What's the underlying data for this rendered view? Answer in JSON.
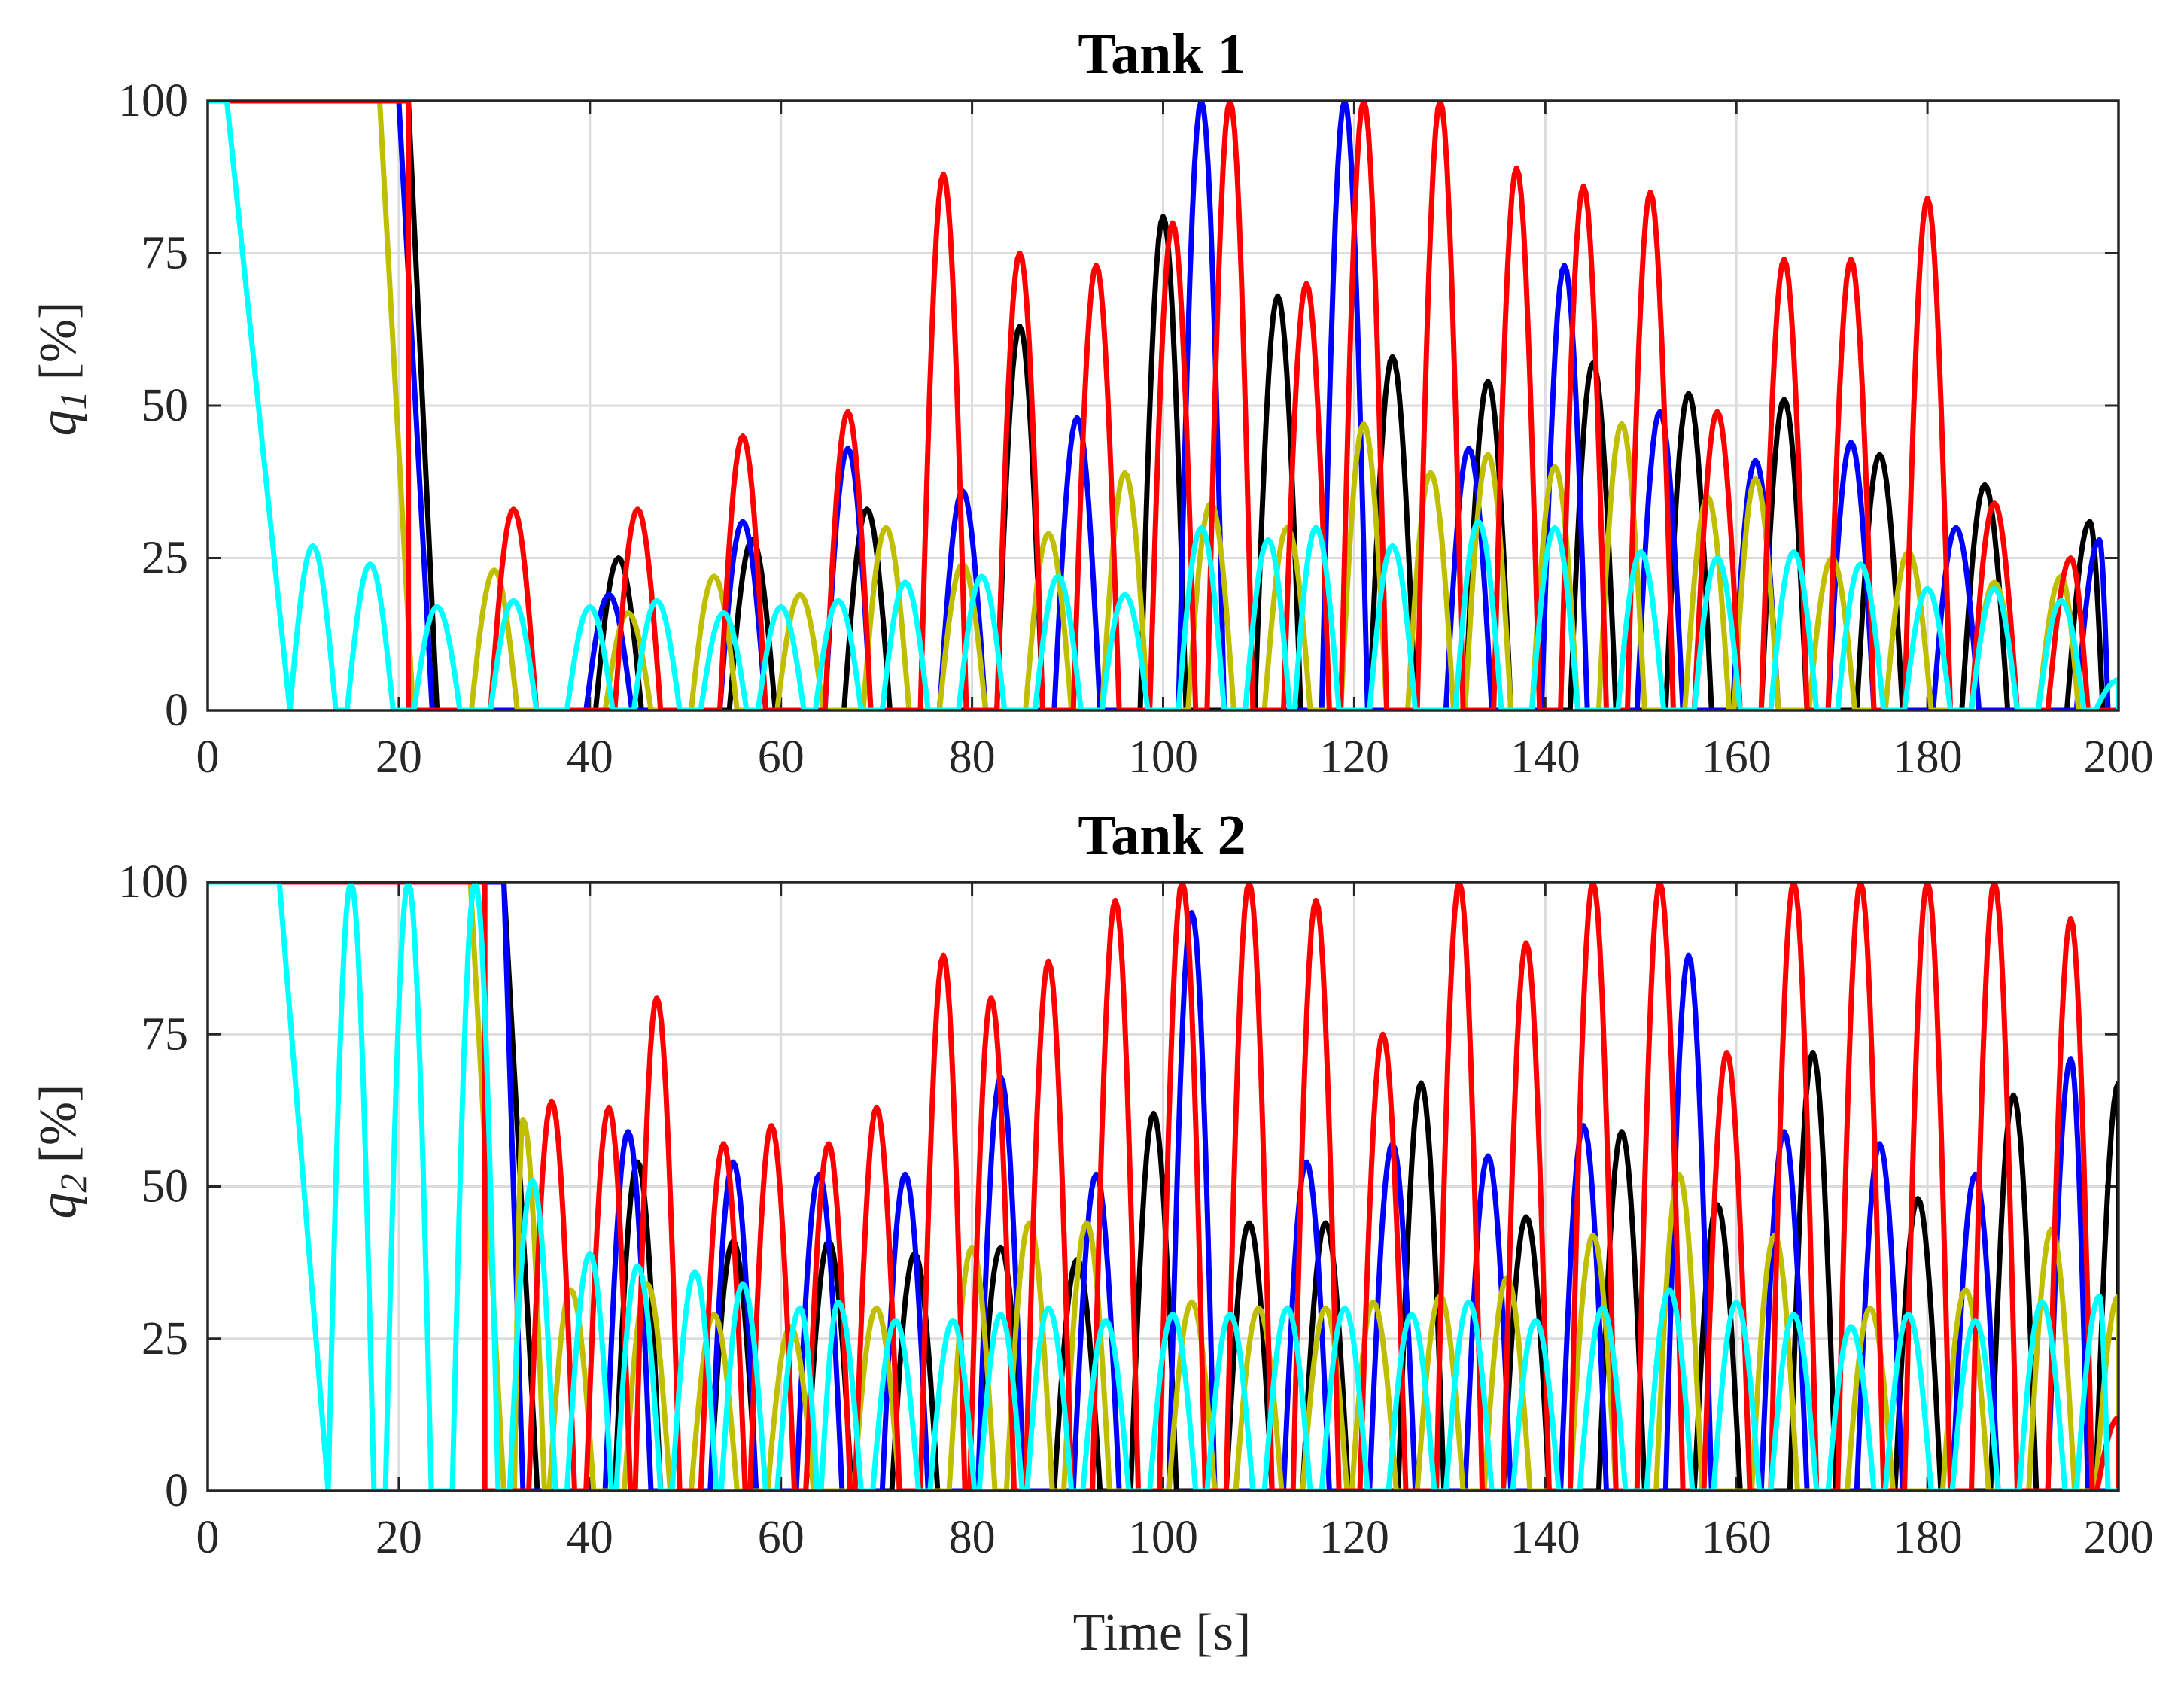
{
  "chart_data": [
    {
      "type": "line",
      "title": "Tank 1",
      "xlabel": "",
      "ylabel_main": "q",
      "ylabel_sub": "1",
      "ylabel_unit": "[%]",
      "xlim": [
        0,
        200
      ],
      "ylim": [
        0,
        100
      ],
      "xticks": [
        0,
        20,
        40,
        60,
        80,
        100,
        120,
        140,
        160,
        180,
        200
      ],
      "yticks": [
        0,
        25,
        50,
        75,
        100
      ],
      "grid": true,
      "series": [
        {
          "name": "black",
          "color": "#000000",
          "saturated_until": 21,
          "drop_to": 24,
          "peaks": [
            [
              43,
              25
            ],
            [
              57,
              28
            ],
            [
              69,
              33
            ],
            [
              85,
              63
            ],
            [
              100,
              81
            ],
            [
              112,
              68
            ],
            [
              124,
              58
            ],
            [
              134,
              54
            ],
            [
              145,
              57
            ],
            [
              155,
              52
            ],
            [
              165,
              51
            ],
            [
              175,
              42
            ],
            [
              186,
              37
            ],
            [
              197,
              31
            ]
          ]
        },
        {
          "name": "blue",
          "color": "#0000ff",
          "saturated_until": 20,
          "drop_to": 23.5,
          "peaks": [
            [
              42,
              19
            ],
            [
              56,
              31
            ],
            [
              67,
              43
            ],
            [
              79,
              36
            ],
            [
              91,
              48
            ],
            [
              104,
              100
            ],
            [
              119,
              100
            ],
            [
              132,
              43
            ],
            [
              142,
              73
            ],
            [
              152,
              49
            ],
            [
              162,
              41
            ],
            [
              172,
              44
            ],
            [
              183,
              30
            ],
            [
              198,
              28
            ]
          ]
        },
        {
          "name": "olive",
          "color": "#bfbf00",
          "saturated_until": 18,
          "drop_to": 21.5,
          "peaks": [
            [
              30,
              23
            ],
            [
              44,
              16
            ],
            [
              53,
              22
            ],
            [
              62,
              19
            ],
            [
              71,
              30
            ],
            [
              79,
              24
            ],
            [
              88,
              29
            ],
            [
              96,
              39
            ],
            [
              105,
              34
            ],
            [
              113,
              30
            ],
            [
              121,
              47
            ],
            [
              128,
              39
            ],
            [
              134,
              42
            ],
            [
              141,
              40
            ],
            [
              148,
              47
            ],
            [
              157,
              35
            ],
            [
              162,
              38
            ],
            [
              170,
              25
            ],
            [
              178,
              26
            ],
            [
              187,
              21
            ],
            [
              194,
              22
            ]
          ]
        },
        {
          "name": "red",
          "color": "#ff0000",
          "saturated_until": 21,
          "drop_to": 21,
          "peaks": [
            [
              32,
              33
            ],
            [
              45,
              33
            ],
            [
              56,
              45
            ],
            [
              67,
              49
            ],
            [
              77,
              88
            ],
            [
              85,
              75
            ],
            [
              93,
              73
            ],
            [
              101,
              80
            ],
            [
              107,
              100
            ],
            [
              115,
              70
            ],
            [
              121,
              100
            ],
            [
              129,
              100
            ],
            [
              137,
              89
            ],
            [
              144,
              86
            ],
            [
              151,
              85
            ],
            [
              158,
              49
            ],
            [
              165,
              74
            ],
            [
              172,
              74
            ],
            [
              180,
              84
            ],
            [
              187,
              34
            ],
            [
              195,
              25
            ]
          ]
        },
        {
          "name": "cyan",
          "color": "#00ffff",
          "saturated_until": 2,
          "peaks": [
            [
              11,
              27
            ],
            [
              17,
              24
            ],
            [
              24,
              17
            ],
            [
              32,
              18
            ],
            [
              40,
              17
            ],
            [
              47,
              18
            ],
            [
              54,
              16
            ],
            [
              60,
              17
            ],
            [
              66,
              18
            ],
            [
              73,
              21
            ],
            [
              81,
              22
            ],
            [
              89,
              22
            ],
            [
              96,
              19
            ],
            [
              104,
              30
            ],
            [
              111,
              28
            ],
            [
              116,
              30
            ],
            [
              124,
              27
            ],
            [
              133,
              31
            ],
            [
              141,
              30
            ],
            [
              150,
              26
            ],
            [
              158,
              25
            ],
            [
              166,
              26
            ],
            [
              173,
              24
            ],
            [
              180,
              20
            ],
            [
              187,
              20
            ],
            [
              194,
              18
            ],
            [
              200,
              5
            ]
          ]
        }
      ]
    },
    {
      "type": "line",
      "title": "Tank 2",
      "xlabel": "Time [s]",
      "ylabel_main": "q",
      "ylabel_sub": "2",
      "ylabel_unit": "[%]",
      "xlim": [
        0,
        200
      ],
      "ylim": [
        0,
        100
      ],
      "xticks": [
        0,
        20,
        40,
        60,
        80,
        100,
        120,
        140,
        160,
        180,
        200
      ],
      "yticks": [
        0,
        25,
        50,
        75,
        100
      ],
      "grid": true,
      "series": [
        {
          "name": "black",
          "color": "#000000",
          "saturated_until": 31,
          "drop_to": 34.5,
          "peaks": [
            [
              45,
              54
            ],
            [
              55,
              41
            ],
            [
              65,
              41
            ],
            [
              74,
              39
            ],
            [
              83,
              40
            ],
            [
              91,
              38
            ],
            [
              99,
              62
            ],
            [
              109,
              44
            ],
            [
              117,
              44
            ],
            [
              127,
              67
            ],
            [
              138,
              45
            ],
            [
              148,
              59
            ],
            [
              158,
              47
            ],
            [
              168,
              72
            ],
            [
              179,
              48
            ],
            [
              189,
              65
            ],
            [
              200,
              67
            ]
          ]
        },
        {
          "name": "blue",
          "color": "#0000ff",
          "saturated_until": 31,
          "drop_to": 33,
          "peaks": [
            [
              44,
              59
            ],
            [
              55,
              54
            ],
            [
              64,
              52
            ],
            [
              73,
              52
            ],
            [
              83,
              68
            ],
            [
              93,
              52
            ],
            [
              103,
              95
            ],
            [
              115,
              54
            ],
            [
              124,
              57
            ],
            [
              134,
              55
            ],
            [
              144,
              60
            ],
            [
              155,
              88
            ],
            [
              165,
              59
            ],
            [
              175,
              57
            ],
            [
              185,
              52
            ],
            [
              195,
              71
            ]
          ]
        },
        {
          "name": "olive",
          "color": "#bfbf00",
          "saturated_until": 27.5,
          "drop_to": 31,
          "peaks": [
            [
              33,
              61
            ],
            [
              38,
              33
            ],
            [
              46,
              34
            ],
            [
              53,
              29
            ],
            [
              61,
              27
            ],
            [
              70,
              30
            ],
            [
              80,
              40
            ],
            [
              86,
              44
            ],
            [
              92,
              44
            ],
            [
              103,
              31
            ],
            [
              110,
              30
            ],
            [
              117,
              30
            ],
            [
              122,
              31
            ],
            [
              129,
              32
            ],
            [
              136,
              35
            ],
            [
              145,
              42
            ],
            [
              154,
              52
            ],
            [
              164,
              42
            ],
            [
              174,
              30
            ],
            [
              184,
              33
            ],
            [
              193,
              43
            ],
            [
              200,
              32
            ]
          ]
        },
        {
          "name": "red",
          "color": "#ff0000",
          "saturated_until": 29,
          "drop_to": 29,
          "peaks": [
            [
              36,
              64
            ],
            [
              42,
              63
            ],
            [
              47,
              81
            ],
            [
              54,
              57
            ],
            [
              59,
              60
            ],
            [
              65,
              57
            ],
            [
              70,
              63
            ],
            [
              77,
              88
            ],
            [
              82,
              81
            ],
            [
              88,
              87
            ],
            [
              95,
              97
            ],
            [
              102,
              100
            ],
            [
              109,
              100
            ],
            [
              116,
              97
            ],
            [
              123,
              75
            ],
            [
              131,
              100
            ],
            [
              138,
              90
            ],
            [
              145,
              100
            ],
            [
              152,
              100
            ],
            [
              159,
              72
            ],
            [
              166,
              100
            ],
            [
              173,
              100
            ],
            [
              180,
              100
            ],
            [
              187,
              100
            ],
            [
              195,
              94
            ],
            [
              200,
              12
            ]
          ]
        },
        {
          "name": "cyan",
          "color": "#00ffff",
          "saturated_until": 7.5,
          "peaks": [
            [
              15,
              100
            ],
            [
              21,
              100
            ],
            [
              28,
              100
            ],
            [
              34,
              51
            ],
            [
              40,
              39
            ],
            [
              45,
              37
            ],
            [
              51,
              36
            ],
            [
              56,
              34
            ],
            [
              62,
              30
            ],
            [
              66,
              31
            ],
            [
              72,
              28
            ],
            [
              78,
              28
            ],
            [
              83,
              29
            ],
            [
              88,
              30
            ],
            [
              94,
              28
            ],
            [
              101,
              29
            ],
            [
              107,
              29
            ],
            [
              113,
              30
            ],
            [
              119,
              30
            ],
            [
              126,
              29
            ],
            [
              132,
              31
            ],
            [
              139,
              28
            ],
            [
              146,
              30
            ],
            [
              153,
              33
            ],
            [
              160,
              31
            ],
            [
              166,
              29
            ],
            [
              172,
              27
            ],
            [
              178,
              29
            ],
            [
              185,
              28
            ],
            [
              192,
              31
            ],
            [
              198,
              32
            ]
          ]
        }
      ]
    }
  ]
}
